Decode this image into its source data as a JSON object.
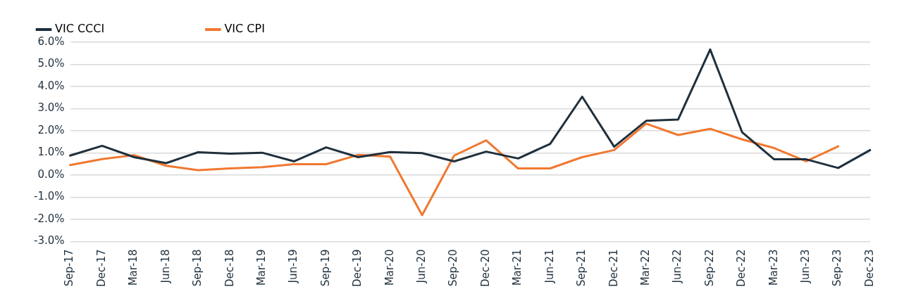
{
  "chart_data": {
    "type": "line",
    "categories": [
      "Sep-17",
      "Dec-17",
      "Mar-18",
      "Jun-18",
      "Sep-18",
      "Dec-18",
      "Mar-19",
      "Jun-19",
      "Sep-19",
      "Dec-19",
      "Mar-20",
      "Jun-20",
      "Sep-20",
      "Dec-20",
      "Mar-21",
      "Jun-21",
      "Sep-21",
      "Dec-21",
      "Mar-22",
      "Jun-22",
      "Sep-22",
      "Dec-22",
      "Mar-23",
      "Jun-23",
      "Sep-23",
      "Dec-23"
    ],
    "series": [
      {
        "name": "VIC CCCI",
        "color": "#1f2f3d",
        "values": [
          0.88,
          1.32,
          0.81,
          0.54,
          1.03,
          0.97,
          1.01,
          0.62,
          1.25,
          0.81,
          1.04,
          0.99,
          0.62,
          1.06,
          0.75,
          1.41,
          3.54,
          1.28,
          2.45,
          2.51,
          5.67,
          1.93,
          0.71,
          0.71,
          0.32,
          1.13
        ]
      },
      {
        "name": "VIC CPI",
        "color": "#f07830",
        "values": [
          0.45,
          0.72,
          0.9,
          0.42,
          0.22,
          0.3,
          0.36,
          0.49,
          0.49,
          0.91,
          0.83,
          -1.81,
          0.88,
          1.57,
          0.3,
          0.3,
          0.81,
          1.13,
          2.32,
          1.81,
          2.09,
          1.61,
          1.22,
          0.62,
          1.3,
          null
        ]
      }
    ],
    "ylim": [
      -3,
      6
    ],
    "yticks": [
      {
        "value": -3,
        "label": "-3.0%"
      },
      {
        "value": -2,
        "label": "-2.0%"
      },
      {
        "value": -1,
        "label": "-1.0%"
      },
      {
        "value": 0,
        "label": "0.0%"
      },
      {
        "value": 1,
        "label": "1.0%"
      },
      {
        "value": 2,
        "label": "2.0%"
      },
      {
        "value": 3,
        "label": "3.0%"
      },
      {
        "value": 4,
        "label": "4.0%"
      },
      {
        "value": 5,
        "label": "5.0%"
      },
      {
        "value": 6,
        "label": "6.0%"
      }
    ],
    "grid": "y",
    "legend": "top left",
    "marker": "none",
    "line_style": "solid"
  }
}
